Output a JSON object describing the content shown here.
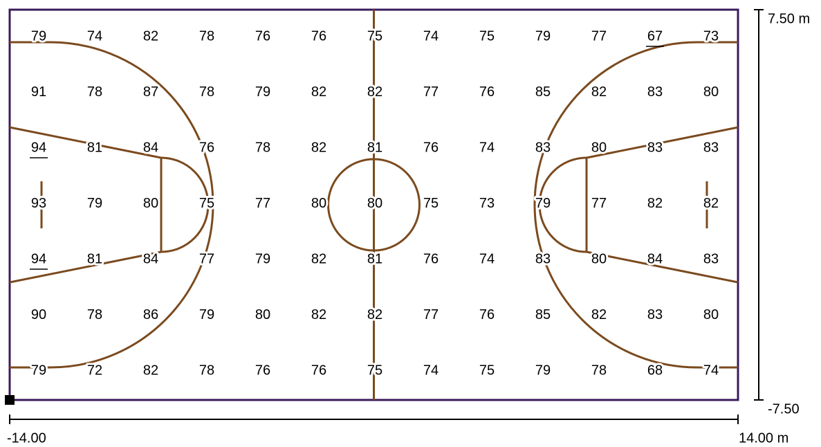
{
  "grid": {
    "rows": [
      [
        79,
        74,
        82,
        78,
        76,
        76,
        75,
        74,
        75,
        79,
        77,
        67,
        73
      ],
      [
        91,
        78,
        87,
        78,
        79,
        82,
        82,
        77,
        76,
        85,
        82,
        83,
        80
      ],
      [
        94,
        81,
        84,
        76,
        78,
        82,
        81,
        76,
        74,
        83,
        80,
        83,
        83
      ],
      [
        93,
        79,
        80,
        75,
        77,
        80,
        80,
        75,
        73,
        79,
        77,
        82,
        82
      ],
      [
        94,
        81,
        84,
        77,
        79,
        82,
        81,
        76,
        74,
        83,
        80,
        84,
        83
      ],
      [
        90,
        78,
        86,
        79,
        80,
        82,
        82,
        77,
        76,
        85,
        82,
        83,
        80
      ],
      [
        79,
        72,
        82,
        78,
        76,
        76,
        75,
        74,
        75,
        79,
        78,
        68,
        74
      ]
    ]
  },
  "dimensions": {
    "y_top": "7.50 m",
    "y_bottom": "-7.50",
    "x_left": "-14.00",
    "x_right": "14.00 m"
  }
}
